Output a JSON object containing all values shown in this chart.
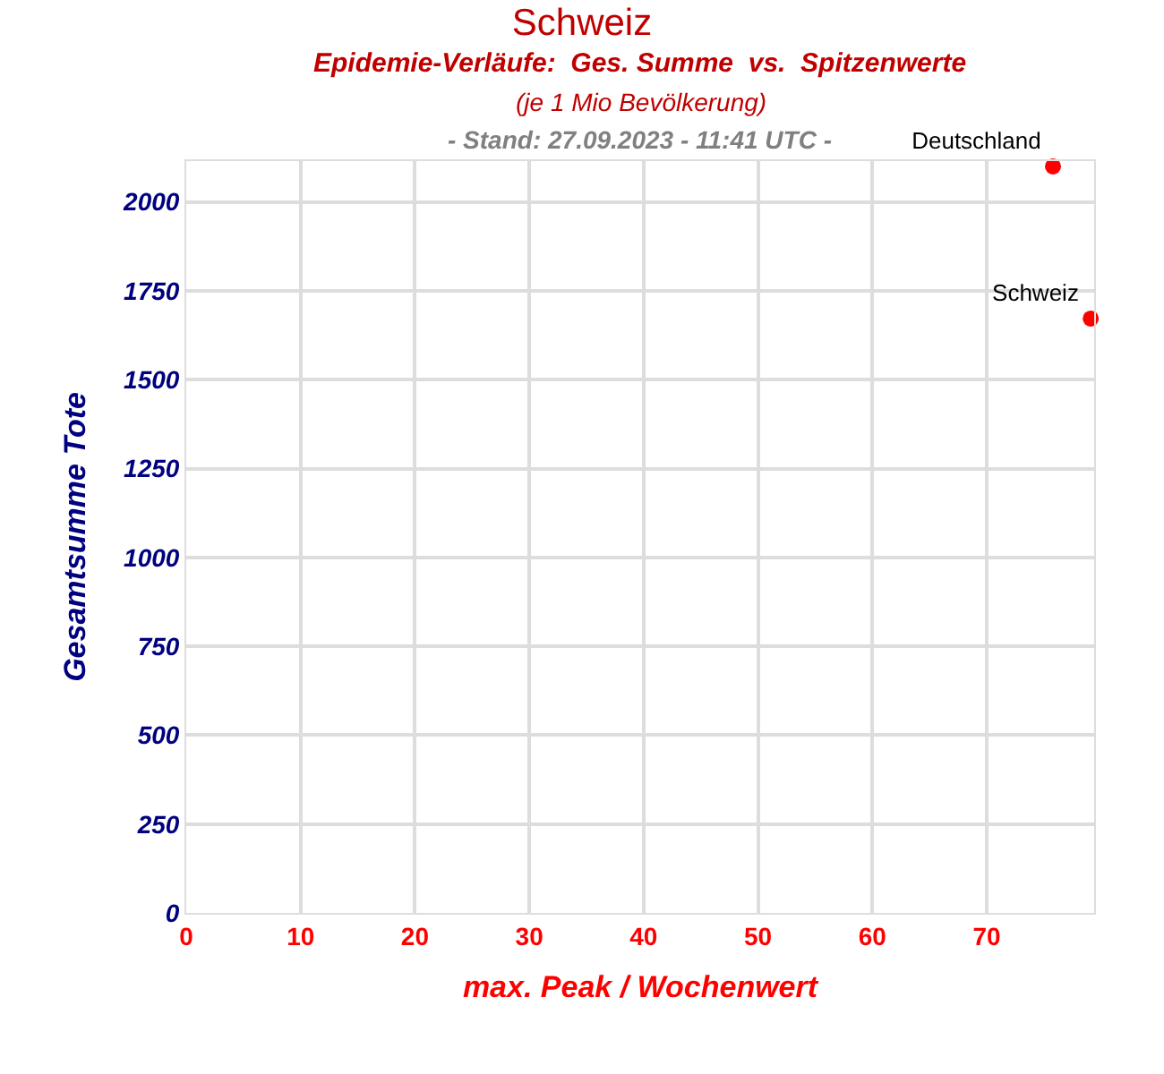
{
  "chart_data": {
    "type": "scatter",
    "title": "Schweiz",
    "subtitle": "Epidemie-Verläufe:  Ges. Summe  vs.  Spitzenwerte\n(je 1 Mio Bevölkerung)\n- Stand: 27.09.2023 - 11:41 UTC -",
    "xlabel": "max. Peak / Wochenwert",
    "ylabel": "Gesamtsumme Tote",
    "series": [
      {
        "name": "Deutschland",
        "color": "#ff0000",
        "x": [
          75.8
        ],
        "values": [
          2100
        ]
      },
      {
        "name": "Schweiz",
        "color": "#ff0000",
        "x": [
          79.1
        ],
        "values": [
          1672
        ]
      }
    ],
    "xlim": [
      0,
      79.4
    ],
    "xticks": [
      0,
      10,
      20,
      30,
      40,
      50,
      60,
      70
    ],
    "ylim": [
      0,
      2115
    ],
    "yticks": [
      0,
      250,
      500,
      750,
      1000,
      1250,
      1500,
      1750,
      2000
    ],
    "grid": true,
    "legend": false,
    "marker": "circle"
  }
}
